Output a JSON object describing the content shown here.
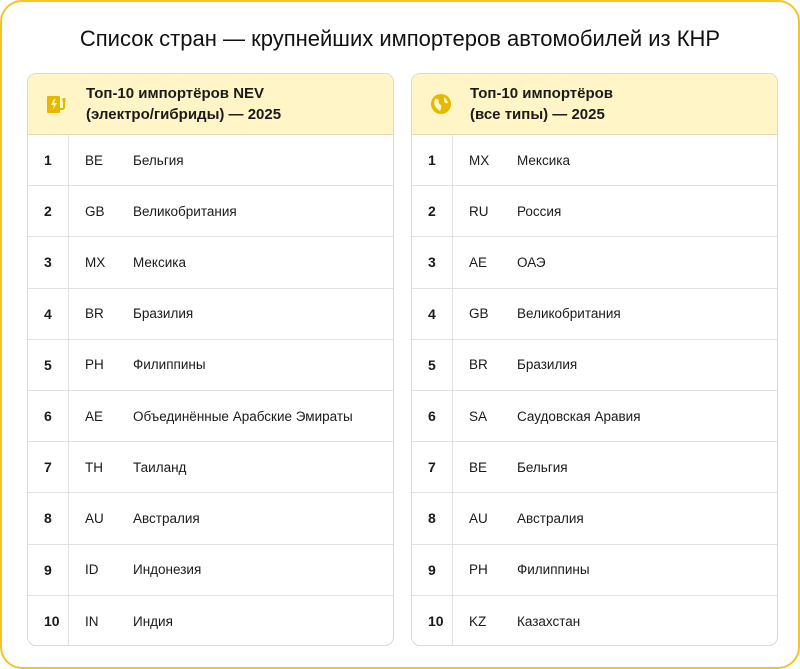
{
  "title": "Список стран — крупнейших импортеров автомобилей из КНР",
  "colors": {
    "accent": "#f3c623",
    "header_bg": "#fff5c7",
    "icon": "#e6b800"
  },
  "tables": [
    {
      "icon": "ev-charger-icon",
      "title_line1": "Топ-10 импортёров NEV",
      "title_line2": "(электро/гибриды) — 2025",
      "rows": [
        [
          "1",
          "BE",
          "Бельгия"
        ],
        [
          "2",
          "GB",
          "Великобритания"
        ],
        [
          "3",
          "MX",
          "Мексика"
        ],
        [
          "4",
          "BR",
          "Бразилия"
        ],
        [
          "5",
          "PH",
          "Филиппины"
        ],
        [
          "6",
          "AE",
          "Объединённые Арабские Эмираты"
        ],
        [
          "7",
          "TH",
          "Таиланд"
        ],
        [
          "8",
          "AU",
          "Австралия"
        ],
        [
          "9",
          "ID",
          "Индонезия"
        ],
        [
          "10",
          "IN",
          "Индия"
        ]
      ]
    },
    {
      "icon": "globe-icon",
      "title_line1": "Топ-10 импортёров",
      "title_line2": "(все типы) — 2025",
      "rows": [
        [
          "1",
          "MX",
          "Мексика"
        ],
        [
          "2",
          "RU",
          "Россия"
        ],
        [
          "3",
          "AE",
          "ОАЭ"
        ],
        [
          "4",
          "GB",
          "Великобритания"
        ],
        [
          "5",
          "BR",
          "Бразилия"
        ],
        [
          "6",
          "SA",
          "Саудовская Аравия"
        ],
        [
          "7",
          "BE",
          "Бельгия"
        ],
        [
          "8",
          "AU",
          "Австралия"
        ],
        [
          "9",
          "PH",
          "Филиппины"
        ],
        [
          "10",
          "KZ",
          "Казахстан"
        ]
      ]
    }
  ]
}
